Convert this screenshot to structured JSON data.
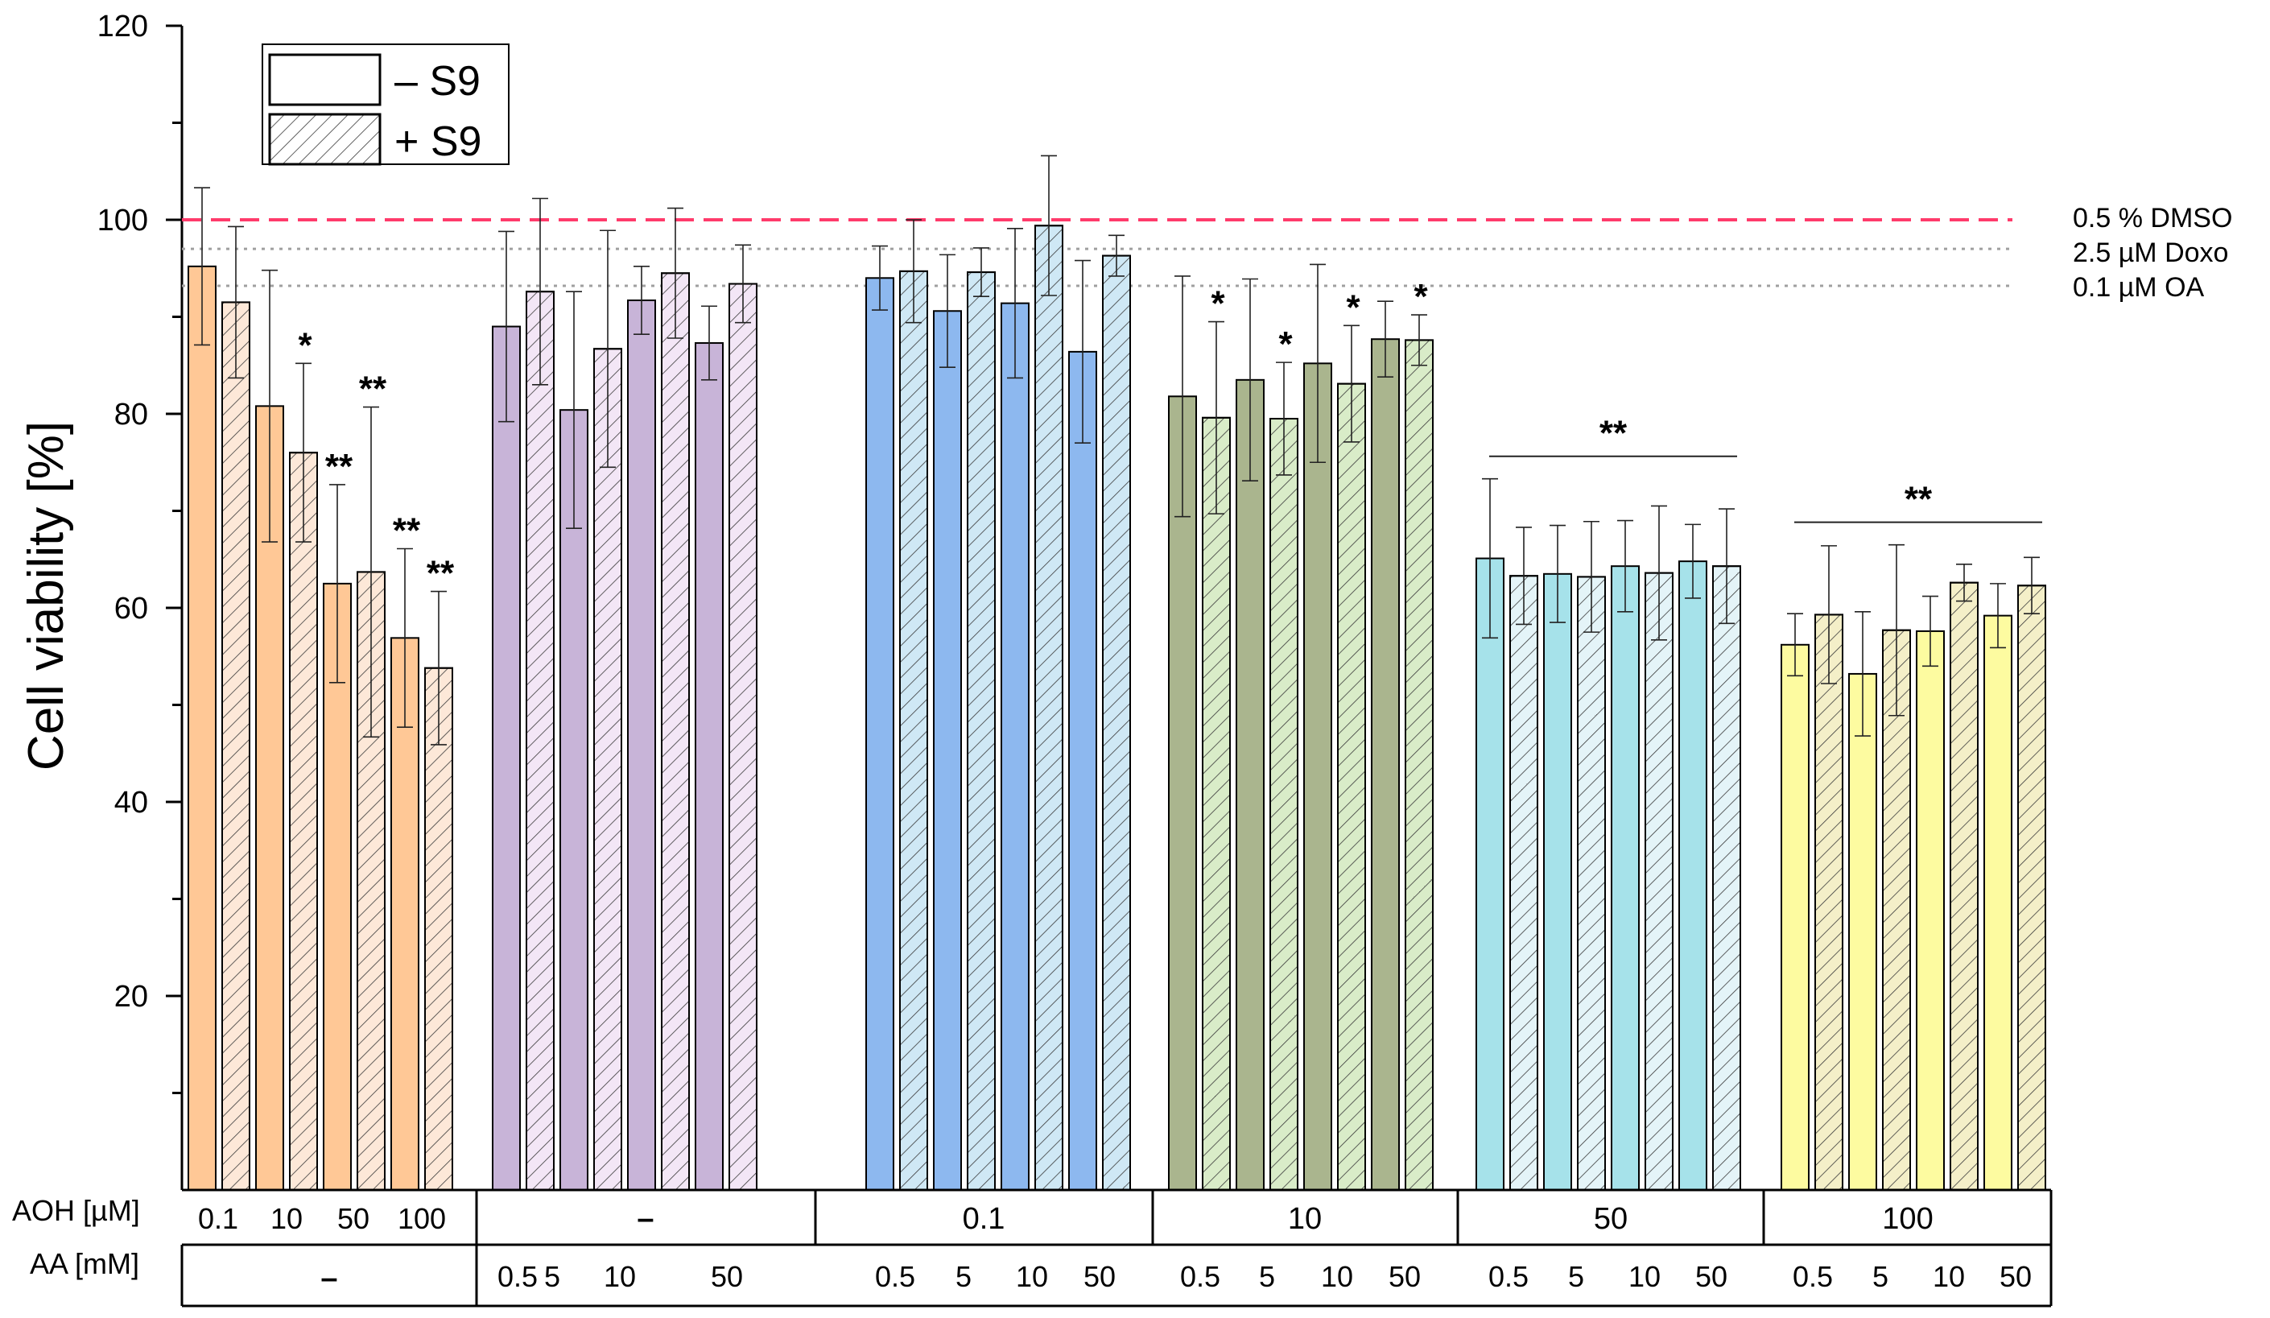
{
  "chart_data": {
    "type": "bar",
    "title": "",
    "ylabel": "Cell viability [%]",
    "ylim": [
      0,
      120
    ],
    "yticks": [
      20,
      40,
      60,
      80,
      100,
      120
    ],
    "legend": {
      "position": "top-left",
      "entries": [
        {
          "label": "– S9",
          "pattern": "solid"
        },
        {
          "label": "+ S9",
          "pattern": "hatched"
        }
      ]
    },
    "reference_lines": [
      {
        "label": "0.5 % DMSO",
        "value": 100,
        "color": "#ff3b6b",
        "style": "dashed"
      },
      {
        "label": "2.5 µM Doxo",
        "value": 97,
        "color": "#a0a0a0",
        "style": "dotted"
      },
      {
        "label": "0.1 µM OA",
        "value": 93.2,
        "color": "#a0a0a0",
        "style": "dotted"
      }
    ],
    "x_axis_rows": [
      {
        "label": "AOH [µM]"
      },
      {
        "label": "AA [mM]"
      }
    ],
    "groups": [
      {
        "aoh": "",
        "aa": "–",
        "aoh_subs": [
          "0.1",
          "10",
          "50",
          "100"
        ],
        "aa_subs": [],
        "color": "#ffc896",
        "hatch_color": "#fde8d8",
        "bars": [
          {
            "value": 95.2,
            "error": 8.1,
            "s9": "-",
            "sig": ""
          },
          {
            "value": 91.5,
            "error": 7.8,
            "s9": "+",
            "sig": ""
          },
          {
            "value": 80.8,
            "error": 14.0,
            "s9": "-",
            "sig": ""
          },
          {
            "value": 76.0,
            "error": 9.2,
            "s9": "+",
            "sig": "*"
          },
          {
            "value": 62.5,
            "error": 10.2,
            "s9": "-",
            "sig": "**"
          },
          {
            "value": 63.7,
            "error": 17.0,
            "s9": "+",
            "sig": "**"
          },
          {
            "value": 56.9,
            "error": 9.2,
            "s9": "-",
            "sig": "**"
          },
          {
            "value": 53.8,
            "error": 7.9,
            "s9": "+",
            "sig": "**"
          }
        ]
      },
      {
        "aoh": "–",
        "aa": "",
        "aoh_subs": [],
        "aa_subs": [
          "0.5",
          "5",
          "10",
          "50"
        ],
        "color": "#c8b4d8",
        "hatch_color": "#f3e6f6",
        "bars": [
          {
            "value": 89.0,
            "error": 9.8,
            "s9": "-",
            "sig": ""
          },
          {
            "value": 92.6,
            "error": 9.6,
            "s9": "+",
            "sig": ""
          },
          {
            "value": 80.4,
            "error": 12.2,
            "s9": "-",
            "sig": ""
          },
          {
            "value": 86.7,
            "error": 12.2,
            "s9": "+",
            "sig": ""
          },
          {
            "value": 91.7,
            "error": 3.5,
            "s9": "-",
            "sig": ""
          },
          {
            "value": 94.5,
            "error": 6.7,
            "s9": "+",
            "sig": ""
          },
          {
            "value": 87.3,
            "error": 3.8,
            "s9": "-",
            "sig": ""
          },
          {
            "value": 93.4,
            "error": 4.0,
            "s9": "+",
            "sig": ""
          }
        ]
      },
      {
        "aoh": "0.1",
        "aa": "",
        "aoh_subs": [],
        "aa_subs": [
          "0.5",
          "5",
          "10",
          "50"
        ],
        "color": "#8db8ef",
        "hatch_color": "#cfe8f5",
        "bars": [
          {
            "value": 94.0,
            "error": 3.3,
            "s9": "-",
            "sig": ""
          },
          {
            "value": 94.7,
            "error": 5.3,
            "s9": "+",
            "sig": ""
          },
          {
            "value": 90.6,
            "error": 5.8,
            "s9": "-",
            "sig": ""
          },
          {
            "value": 94.6,
            "error": 2.5,
            "s9": "+",
            "sig": ""
          },
          {
            "value": 91.4,
            "error": 7.7,
            "s9": "-",
            "sig": ""
          },
          {
            "value": 99.4,
            "error": 7.2,
            "s9": "+",
            "sig": ""
          },
          {
            "value": 86.4,
            "error": 9.4,
            "s9": "-",
            "sig": ""
          },
          {
            "value": 96.3,
            "error": 2.1,
            "s9": "+",
            "sig": ""
          }
        ]
      },
      {
        "aoh": "10",
        "aa": "",
        "aoh_subs": [],
        "aa_subs": [
          "0.5",
          "5",
          "10",
          "50"
        ],
        "color": "#aab58e",
        "hatch_color": "#d9ecc8",
        "bars": [
          {
            "value": 81.8,
            "error": 12.4,
            "s9": "-",
            "sig": ""
          },
          {
            "value": 79.6,
            "error": 9.9,
            "s9": "+",
            "sig": "*"
          },
          {
            "value": 83.5,
            "error": 10.4,
            "s9": "-",
            "sig": ""
          },
          {
            "value": 79.5,
            "error": 5.8,
            "s9": "+",
            "sig": "*"
          },
          {
            "value": 85.2,
            "error": 10.2,
            "s9": "-",
            "sig": ""
          },
          {
            "value": 83.1,
            "error": 6.0,
            "s9": "+",
            "sig": "*"
          },
          {
            "value": 87.7,
            "error": 3.9,
            "s9": "-",
            "sig": ""
          },
          {
            "value": 87.6,
            "error": 2.6,
            "s9": "+",
            "sig": "*"
          }
        ]
      },
      {
        "aoh": "50",
        "aa": "",
        "aoh_subs": [],
        "aa_subs": [
          "0.5",
          "5",
          "10",
          "50"
        ],
        "color": "#a6e2ea",
        "hatch_color": "#e4f4f8",
        "bars": [
          {
            "value": 65.1,
            "error": 8.2,
            "s9": "-",
            "sig": ""
          },
          {
            "value": 63.3,
            "error": 5.0,
            "s9": "+",
            "sig": ""
          },
          {
            "value": 63.5,
            "error": 5.0,
            "s9": "-",
            "sig": ""
          },
          {
            "value": 63.2,
            "error": 5.7,
            "s9": "+",
            "sig": ""
          },
          {
            "value": 64.3,
            "error": 4.7,
            "s9": "-",
            "sig": ""
          },
          {
            "value": 63.6,
            "error": 6.9,
            "s9": "+",
            "sig": ""
          },
          {
            "value": 64.8,
            "error": 3.8,
            "s9": "-",
            "sig": ""
          },
          {
            "value": 64.3,
            "error": 5.9,
            "s9": "+",
            "sig": ""
          }
        ],
        "group_sig": "**"
      },
      {
        "aoh": "100",
        "aa": "",
        "aoh_subs": [],
        "aa_subs": [
          "0.5",
          "5",
          "10",
          "50"
        ],
        "color": "#fdfba0",
        "hatch_color": "#f4efc8",
        "bars": [
          {
            "value": 56.2,
            "error": 3.2,
            "s9": "-",
            "sig": ""
          },
          {
            "value": 59.3,
            "error": 7.1,
            "s9": "+",
            "sig": ""
          },
          {
            "value": 53.2,
            "error": 6.4,
            "s9": "-",
            "sig": ""
          },
          {
            "value": 57.7,
            "error": 8.8,
            "s9": "+",
            "sig": ""
          },
          {
            "value": 57.6,
            "error": 3.6,
            "s9": "-",
            "sig": ""
          },
          {
            "value": 62.6,
            "error": 1.9,
            "s9": "+",
            "sig": ""
          },
          {
            "value": 59.2,
            "error": 3.3,
            "s9": "-",
            "sig": ""
          },
          {
            "value": 62.3,
            "error": 2.9,
            "s9": "+",
            "sig": ""
          }
        ],
        "group_sig": "**"
      }
    ]
  }
}
